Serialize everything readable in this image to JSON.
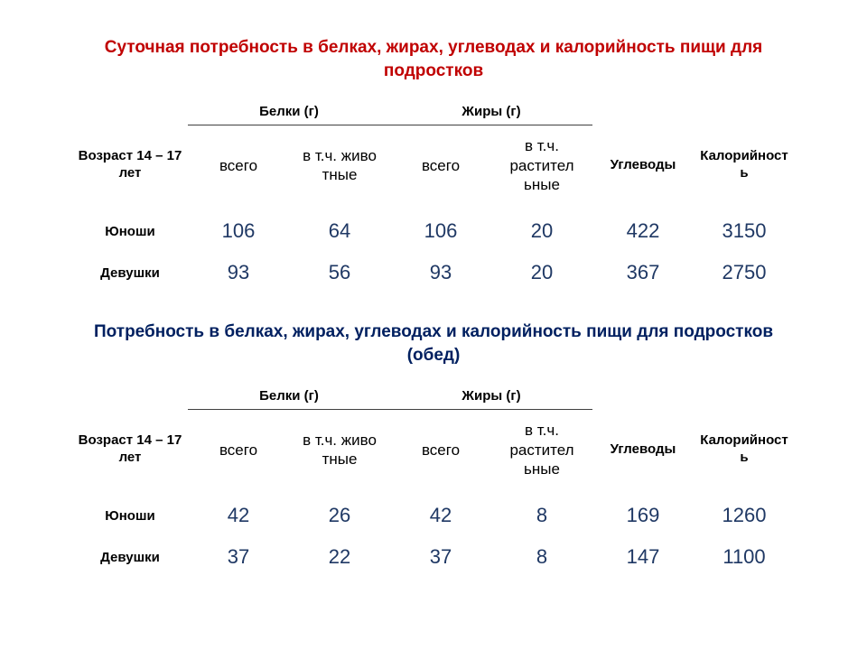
{
  "colors": {
    "title1": "#c00000",
    "title2": "#002060",
    "data": "#1f3864",
    "text": "#000000",
    "border": "#404040",
    "background": "#ffffff"
  },
  "font_sizes": {
    "title": 19,
    "header_bold": 15,
    "sub_header": 17,
    "data": 22
  },
  "table1": {
    "title": "Суточная потребность в белках, жирах, углеводах и калорийность пищи для подростков",
    "group_headers": {
      "belki": "Белки (г)",
      "zhiry": "Жиры (г)"
    },
    "sub_headers": {
      "age": "Возраст 14 – 17 лет",
      "vsego1": "всего",
      "animal": "в т.ч. живо тные",
      "vsego2": "всего",
      "plant": "в т.ч. растител ьные",
      "uglevody": "Углеводы",
      "kalor": "Калорийност ь"
    },
    "rows": [
      {
        "label": "Юноши",
        "v": [
          "106",
          "64",
          "106",
          "20",
          "422",
          "3150"
        ]
      },
      {
        "label": "Девушки",
        "v": [
          "93",
          "56",
          "93",
          "20",
          "367",
          "2750"
        ]
      }
    ]
  },
  "table2": {
    "title": "Потребность в белках, жирах, углеводах и калорийность пищи для подростков (обед)",
    "group_headers": {
      "belki": "Белки (г)",
      "zhiry": "Жиры (г)"
    },
    "sub_headers": {
      "age": "Возраст 14 – 17 лет",
      "vsego1": "всего",
      "animal": "в т.ч. живо тные",
      "vsego2": "всего",
      "plant": "в т.ч. растител ьные",
      "uglevody": "Углеводы",
      "kalor": "Калорийност ь"
    },
    "rows": [
      {
        "label": "Юноши",
        "v": [
          "42",
          "26",
          "42",
          "8",
          "169",
          "1260"
        ]
      },
      {
        "label": "Девушки",
        "v": [
          "37",
          "22",
          "37",
          "8",
          "147",
          "1100"
        ]
      }
    ]
  }
}
